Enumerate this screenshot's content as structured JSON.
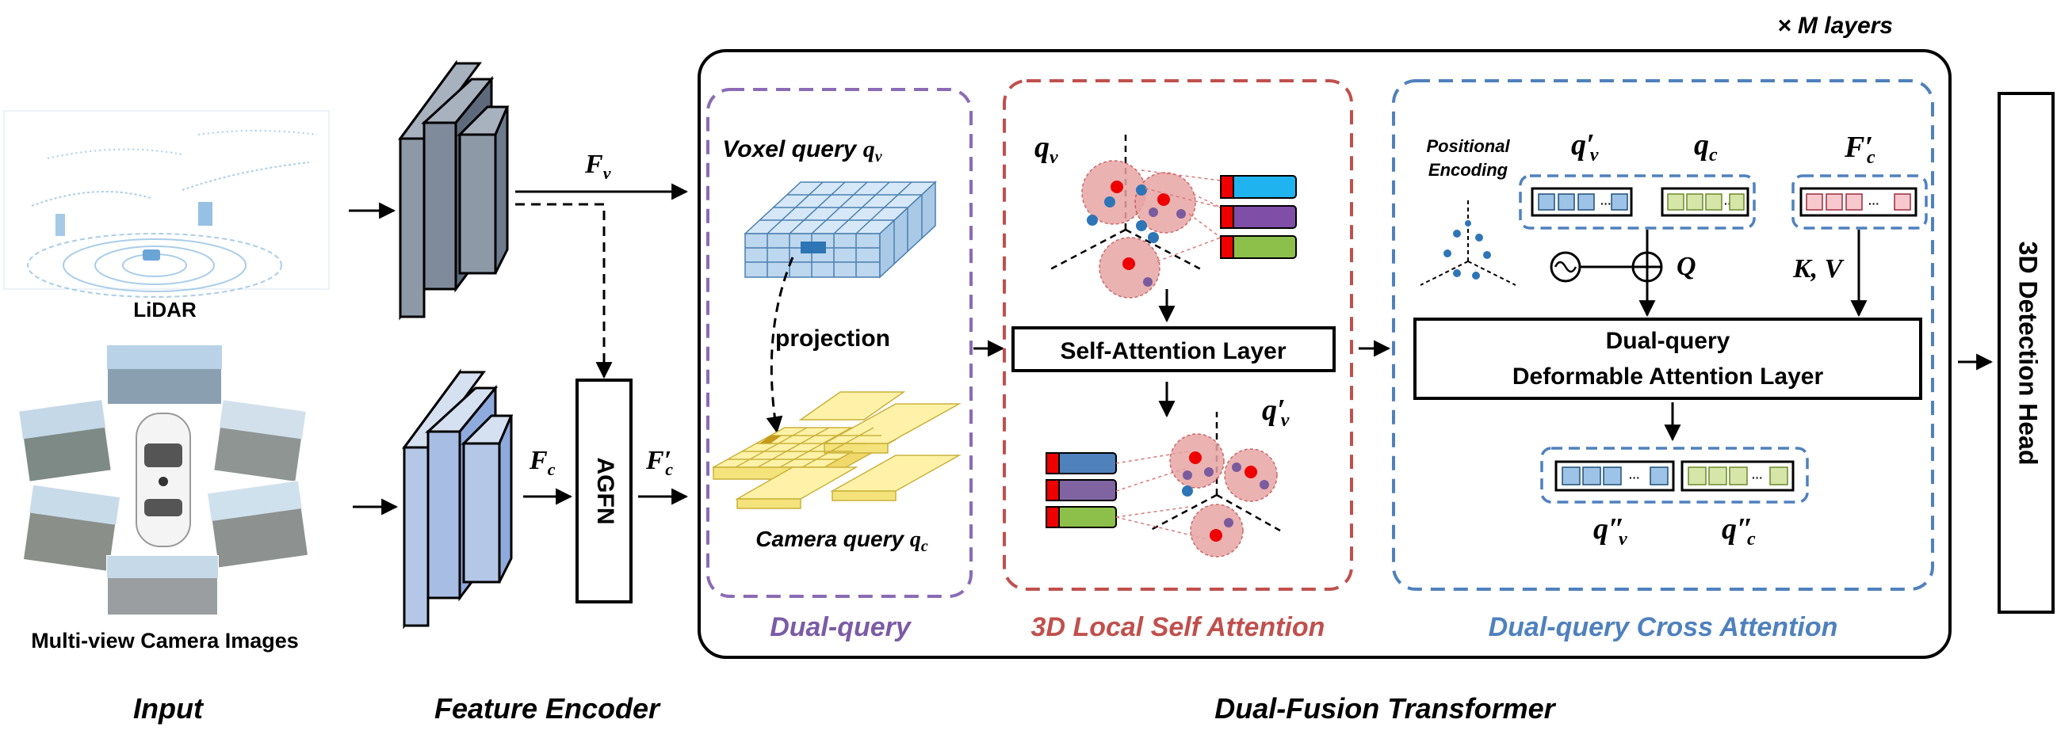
{
  "labels": {
    "layers": "× M layers",
    "lidar": "LiDAR",
    "camera_images": "Multi-view Camera Images",
    "input": "Input",
    "feature_encoder": "Feature Encoder",
    "dual_fusion_transformer": "Dual-Fusion Transformer",
    "agfn": "AGFN",
    "f_v": "F",
    "f_v_sub": "v",
    "f_c": "F",
    "f_c_sub": "c",
    "f_c_prime": "F′",
    "f_c_prime_sub": "c",
    "voxel_query": "Voxel query",
    "voxel_query_sym": "q",
    "voxel_query_sub": "v",
    "projection": "projection",
    "camera_query": "Camera query",
    "camera_query_sym": "q",
    "camera_query_sub": "c",
    "dual_query_title": "Dual-query",
    "q_v": "q",
    "q_v_sub": "v",
    "self_attention_layer": "Self-Attention Layer",
    "q_v_prime": "q′",
    "q_v_prime_sub": "v",
    "local_self_attention_title": "3D Local Self Attention",
    "positional_encoding_line1": "Positional",
    "positional_encoding_line2": "Encoding",
    "ca_q_v_prime": "q′",
    "ca_q_v_prime_sub": "v",
    "ca_q_c": "q",
    "ca_q_c_sub": "c",
    "ca_f_c_prime": "F′",
    "ca_f_c_prime_sub": "c",
    "Q": "Q",
    "KV": "K, V",
    "deformable_line1": "Dual-query",
    "deformable_line2": "Deformable Attention Layer",
    "q_v_dprime": "q″",
    "q_v_dprime_sub": "v",
    "q_c_dprime": "q″",
    "q_c_dprime_sub": "c",
    "cross_attention_title": "Dual-query Cross Attention",
    "detection_head": "3D Detection Head",
    "ellipsis": "···"
  },
  "colors": {
    "purple": "#7B5BA6",
    "red": "#C0504D",
    "blue": "#4F81BD",
    "voxel_fill": "#BDD7EE",
    "camera_fill": "#FFF2A8",
    "encoder_lidar": "#8E99A8",
    "encoder_camera": "#B4C7E7",
    "sphere": "#E8A5A5"
  }
}
